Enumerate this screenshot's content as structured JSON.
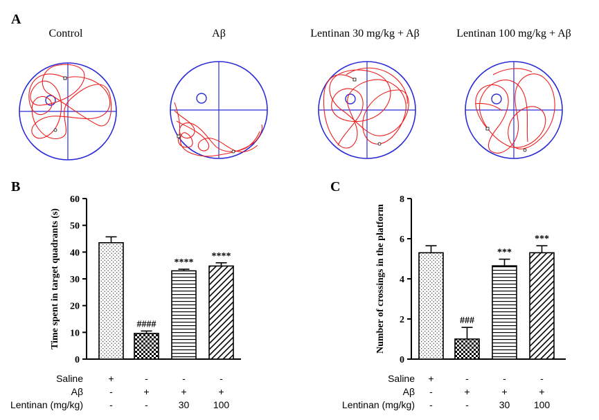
{
  "panels": {
    "A": "A",
    "B": "B",
    "C": "C"
  },
  "tracks": [
    {
      "title": "Control"
    },
    {
      "title": "Aβ"
    },
    {
      "title": "Lentinan 30 mg/kg + Aβ"
    },
    {
      "title": "Lentinan 100 mg/kg + Aβ"
    }
  ],
  "colors": {
    "pool": "#2b2bd6",
    "path": "#ee1c1c",
    "axis": "#000000"
  },
  "conditions": {
    "row_labels": [
      "Saline",
      "Aβ",
      "Lentinan (mg/kg)"
    ],
    "columns": [
      [
        "+",
        "-",
        "-"
      ],
      [
        "-",
        "+",
        "-"
      ],
      [
        "-",
        "+",
        "30"
      ],
      [
        "-",
        "+",
        "100"
      ]
    ]
  },
  "chart_data": [
    {
      "type": "bar",
      "panel": "B",
      "ylabel": "Time spent in target quadrants (s)",
      "ylim": [
        0,
        60
      ],
      "yticks": [
        "0",
        "10",
        "20",
        "30",
        "40",
        "50",
        "60"
      ],
      "groups": [
        "Saline",
        "Aβ",
        "Lentinan 30 mg/kg + Aβ",
        "Lentinan 100 mg/kg + Aβ"
      ],
      "values": [
        43.5,
        9.6,
        33.0,
        34.8
      ],
      "errors": [
        2.2,
        0.9,
        0.6,
        1.2
      ],
      "patterns": [
        "dots",
        "checker",
        "hlines",
        "diag"
      ],
      "annotations": [
        "",
        "####",
        "****",
        "****"
      ]
    },
    {
      "type": "bar",
      "panel": "C",
      "ylabel": "Number of crossings in the platform",
      "ylim": [
        0,
        8
      ],
      "yticks": [
        "0",
        "2",
        "4",
        "6",
        "8"
      ],
      "groups": [
        "Saline",
        "Aβ",
        "Lentinan 30 mg/kg + Aβ",
        "Lentinan 100 mg/kg + Aβ"
      ],
      "values": [
        5.3,
        1.0,
        4.65,
        5.3
      ],
      "errors": [
        0.35,
        0.58,
        0.33,
        0.35
      ],
      "patterns": [
        "dots",
        "checker",
        "hlines",
        "diag"
      ],
      "annotations": [
        "",
        "###",
        "***",
        "***"
      ]
    }
  ]
}
